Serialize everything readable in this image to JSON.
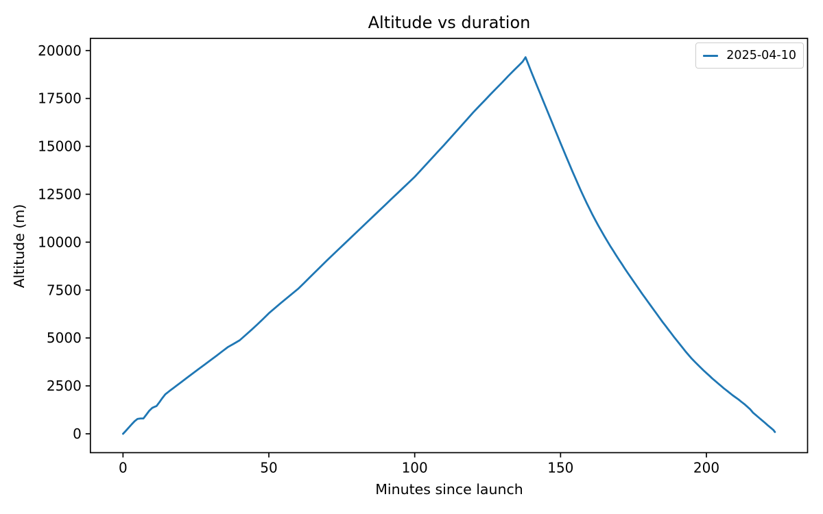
{
  "chart_data": {
    "type": "line",
    "title": "Altitude vs duration",
    "xlabel": "Minutes since launch",
    "ylabel": "Altitude (m)",
    "xlim": [
      -11.18,
      234.68
    ],
    "ylim": [
      -985,
      20635
    ],
    "xticks": [
      0,
      50,
      100,
      150,
      200
    ],
    "yticks": [
      0,
      2500,
      5000,
      7500,
      10000,
      12500,
      15000,
      17500,
      20000
    ],
    "grid": false,
    "spine_color": "#000000",
    "legend": {
      "position": "upper right",
      "border_color": "#cccccc",
      "entries": [
        {
          "label": "2025-04-10",
          "color": "#1f77b4"
        }
      ]
    },
    "series": [
      {
        "name": "2025-04-10",
        "color": "#1f77b4",
        "points": [
          [
            0,
            0
          ],
          [
            1,
            160
          ],
          [
            2,
            330
          ],
          [
            3,
            500
          ],
          [
            4,
            660
          ],
          [
            5,
            780
          ],
          [
            6,
            800
          ],
          [
            7,
            800
          ],
          [
            8,
            1000
          ],
          [
            9,
            1200
          ],
          [
            10,
            1350
          ],
          [
            11,
            1420
          ],
          [
            11.5,
            1450
          ],
          [
            12.5,
            1650
          ],
          [
            13.5,
            1870
          ],
          [
            14.5,
            2060
          ],
          [
            16,
            2240
          ],
          [
            18,
            2470
          ],
          [
            20,
            2700
          ],
          [
            22,
            2930
          ],
          [
            24,
            3160
          ],
          [
            26,
            3390
          ],
          [
            28,
            3610
          ],
          [
            30,
            3840
          ],
          [
            32,
            4070
          ],
          [
            34,
            4300
          ],
          [
            36,
            4530
          ],
          [
            38,
            4700
          ],
          [
            40,
            4880
          ],
          [
            42,
            5150
          ],
          [
            44,
            5420
          ],
          [
            46,
            5700
          ],
          [
            48,
            5990
          ],
          [
            50,
            6290
          ],
          [
            52,
            6550
          ],
          [
            54,
            6810
          ],
          [
            56,
            7060
          ],
          [
            58,
            7310
          ],
          [
            60,
            7560
          ],
          [
            62,
            7860
          ],
          [
            64,
            8160
          ],
          [
            66,
            8460
          ],
          [
            68,
            8760
          ],
          [
            70,
            9060
          ],
          [
            72,
            9350
          ],
          [
            74,
            9640
          ],
          [
            76,
            9930
          ],
          [
            78,
            10220
          ],
          [
            80,
            10510
          ],
          [
            82,
            10800
          ],
          [
            84,
            11090
          ],
          [
            86,
            11380
          ],
          [
            88,
            11670
          ],
          [
            90,
            11960
          ],
          [
            92,
            12250
          ],
          [
            94,
            12540
          ],
          [
            96,
            12830
          ],
          [
            98,
            13120
          ],
          [
            100,
            13410
          ],
          [
            102,
            13740
          ],
          [
            104,
            14070
          ],
          [
            106,
            14400
          ],
          [
            108,
            14730
          ],
          [
            110,
            15060
          ],
          [
            112,
            15400
          ],
          [
            114,
            15740
          ],
          [
            116,
            16080
          ],
          [
            118,
            16420
          ],
          [
            120,
            16760
          ],
          [
            122,
            17080
          ],
          [
            124,
            17400
          ],
          [
            126,
            17720
          ],
          [
            128,
            18030
          ],
          [
            130,
            18340
          ],
          [
            132,
            18660
          ],
          [
            134,
            18970
          ],
          [
            136,
            19270
          ],
          [
            137,
            19420
          ],
          [
            138,
            19650
          ],
          [
            139,
            19260
          ],
          [
            140,
            18880
          ],
          [
            141,
            18500
          ],
          [
            142,
            18130
          ],
          [
            143,
            17760
          ],
          [
            144,
            17390
          ],
          [
            145,
            17020
          ],
          [
            146,
            16650
          ],
          [
            147,
            16280
          ],
          [
            148,
            15910
          ],
          [
            149,
            15540
          ],
          [
            150,
            15170
          ],
          [
            151,
            14800
          ],
          [
            152,
            14440
          ],
          [
            153,
            14080
          ],
          [
            154,
            13720
          ],
          [
            155,
            13370
          ],
          [
            156,
            13020
          ],
          [
            157,
            12680
          ],
          [
            158,
            12350
          ],
          [
            159,
            12030
          ],
          [
            160,
            11720
          ],
          [
            161,
            11420
          ],
          [
            162,
            11130
          ],
          [
            163,
            10850
          ],
          [
            164,
            10580
          ],
          [
            165,
            10320
          ],
          [
            166,
            10060
          ],
          [
            167,
            9810
          ],
          [
            168,
            9570
          ],
          [
            169,
            9330
          ],
          [
            170,
            9090
          ],
          [
            171,
            8860
          ],
          [
            172,
            8630
          ],
          [
            173,
            8400
          ],
          [
            174,
            8180
          ],
          [
            175,
            7960
          ],
          [
            176,
            7740
          ],
          [
            177,
            7520
          ],
          [
            178,
            7300
          ],
          [
            179,
            7090
          ],
          [
            180,
            6880
          ],
          [
            181,
            6670
          ],
          [
            182,
            6460
          ],
          [
            183,
            6250
          ],
          [
            184,
            6040
          ],
          [
            185,
            5830
          ],
          [
            186,
            5630
          ],
          [
            187,
            5430
          ],
          [
            188,
            5230
          ],
          [
            189,
            5030
          ],
          [
            190,
            4840
          ],
          [
            191,
            4650
          ],
          [
            192,
            4460
          ],
          [
            193,
            4270
          ],
          [
            194,
            4090
          ],
          [
            195,
            3920
          ],
          [
            196,
            3760
          ],
          [
            197,
            3610
          ],
          [
            198,
            3460
          ],
          [
            199,
            3310
          ],
          [
            200,
            3170
          ],
          [
            201,
            3030
          ],
          [
            202,
            2890
          ],
          [
            203,
            2760
          ],
          [
            204,
            2630
          ],
          [
            205,
            2500
          ],
          [
            206,
            2370
          ],
          [
            207,
            2250
          ],
          [
            208,
            2130
          ],
          [
            209,
            2010
          ],
          [
            210,
            1900
          ],
          [
            211,
            1790
          ],
          [
            212,
            1670
          ],
          [
            213,
            1550
          ],
          [
            214,
            1420
          ],
          [
            215,
            1280
          ],
          [
            216,
            1100
          ],
          [
            217,
            970
          ],
          [
            218,
            840
          ],
          [
            219,
            710
          ],
          [
            220,
            580
          ],
          [
            221,
            450
          ],
          [
            222,
            320
          ],
          [
            223,
            190
          ],
          [
            223.5,
            90
          ]
        ]
      }
    ]
  }
}
